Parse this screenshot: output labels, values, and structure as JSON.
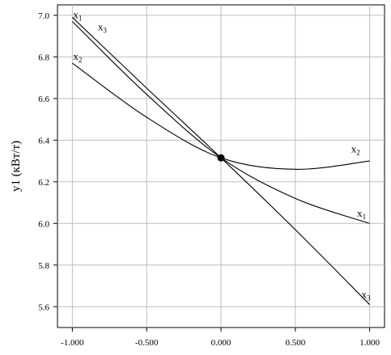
{
  "chart_data": {
    "type": "line",
    "ylabel": "y1 (кВт/т)",
    "xlabel": "",
    "xlim": [
      -1.1,
      1.1
    ],
    "ylim": [
      5.5,
      7.05
    ],
    "x_ticks": [
      "-1.000",
      "-0.500",
      "0.000",
      "0.500",
      "1.000"
    ],
    "x_tick_values": [
      -1.0,
      -0.5,
      0.0,
      0.5,
      1.0
    ],
    "y_ticks": [
      "5.6",
      "5.8",
      "6.0",
      "6.2",
      "6.4",
      "6.6",
      "6.8",
      "7.0"
    ],
    "y_tick_values": [
      5.6,
      5.8,
      6.0,
      6.2,
      6.4,
      6.6,
      6.8,
      7.0
    ],
    "grid": true,
    "center_point": {
      "x": 0.0,
      "y": 6.315
    },
    "series": [
      {
        "name": "x1",
        "x": [
          -1.0,
          -0.5,
          0.0,
          0.5,
          1.0
        ],
        "y": [
          6.97,
          6.62,
          6.315,
          6.12,
          6.0
        ]
      },
      {
        "name": "x2",
        "x": [
          -1.0,
          -0.5,
          0.0,
          0.5,
          1.0
        ],
        "y": [
          6.77,
          6.51,
          6.315,
          6.26,
          6.3
        ]
      },
      {
        "name": "x3",
        "x": [
          -1.0,
          -0.5,
          0.0,
          0.5,
          1.0
        ],
        "y": [
          6.99,
          6.65,
          6.315,
          5.97,
          5.61
        ]
      }
    ],
    "series_labels": [
      {
        "main": "x",
        "sub": "1",
        "x": -1.0,
        "y": 6.97,
        "anchor": "start-above"
      },
      {
        "main": "x",
        "sub": "3",
        "x": -0.85,
        "y": 6.92,
        "anchor": "end-right"
      },
      {
        "main": "x",
        "sub": "2",
        "x": -1.0,
        "y": 6.77,
        "anchor": "start-above"
      },
      {
        "main": "x",
        "sub": "2",
        "x": 0.93,
        "y": 6.33,
        "anchor": "end"
      },
      {
        "main": "x",
        "sub": "1",
        "x": 0.97,
        "y": 6.02,
        "anchor": "end"
      },
      {
        "main": "x",
        "sub": "3",
        "x": 1.0,
        "y": 5.63,
        "anchor": "end"
      }
    ]
  }
}
